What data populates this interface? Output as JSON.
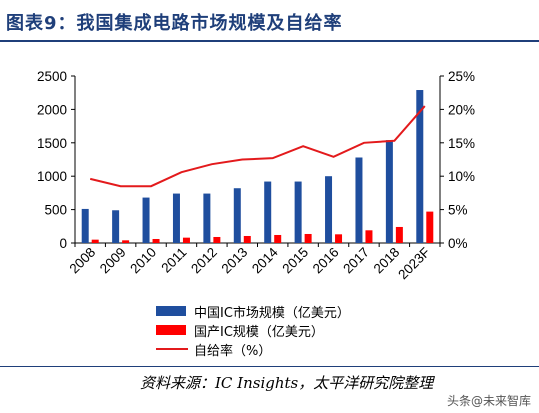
{
  "header": {
    "title": "图表9：我国集成电路市场规模及自给率"
  },
  "chart_data": {
    "type": "bar",
    "categories": [
      "2008",
      "2009",
      "2010",
      "2011",
      "2012",
      "2013",
      "2014",
      "2015",
      "2016",
      "2017",
      "2018",
      "2023F"
    ],
    "series": [
      {
        "name": "中国IC市场规模（亿美元）",
        "type": "bar",
        "axis": "left",
        "color": "#1f4e9e",
        "values": [
          510,
          490,
          680,
          740,
          740,
          820,
          920,
          920,
          1000,
          1280,
          1540,
          2290
        ]
      },
      {
        "name": "国产IC规模（亿美元）",
        "type": "bar",
        "axis": "left",
        "color": "#ff0000",
        "values": [
          50,
          40,
          60,
          80,
          90,
          105,
          120,
          135,
          130,
          190,
          240,
          470
        ]
      },
      {
        "name": "自给率（%）",
        "type": "line",
        "axis": "right",
        "color": "#e31a1c",
        "values": [
          9.6,
          8.5,
          8.5,
          10.6,
          11.8,
          12.5,
          12.7,
          14.5,
          12.9,
          15.0,
          15.3,
          20.5
        ]
      }
    ],
    "y_left": {
      "min": 0,
      "max": 2500,
      "ticks": [
        0,
        500,
        1000,
        1500,
        2000,
        2500
      ]
    },
    "y_right": {
      "min": 0,
      "max": 25,
      "ticks": [
        "0%",
        "5%",
        "10%",
        "15%",
        "20%",
        "25%"
      ]
    },
    "grid": false,
    "legend_position": "bottom"
  },
  "source": {
    "text": "资料来源：IC Insights，太平洋研究院整理"
  },
  "watermark": {
    "text": "头条@未来智库"
  }
}
